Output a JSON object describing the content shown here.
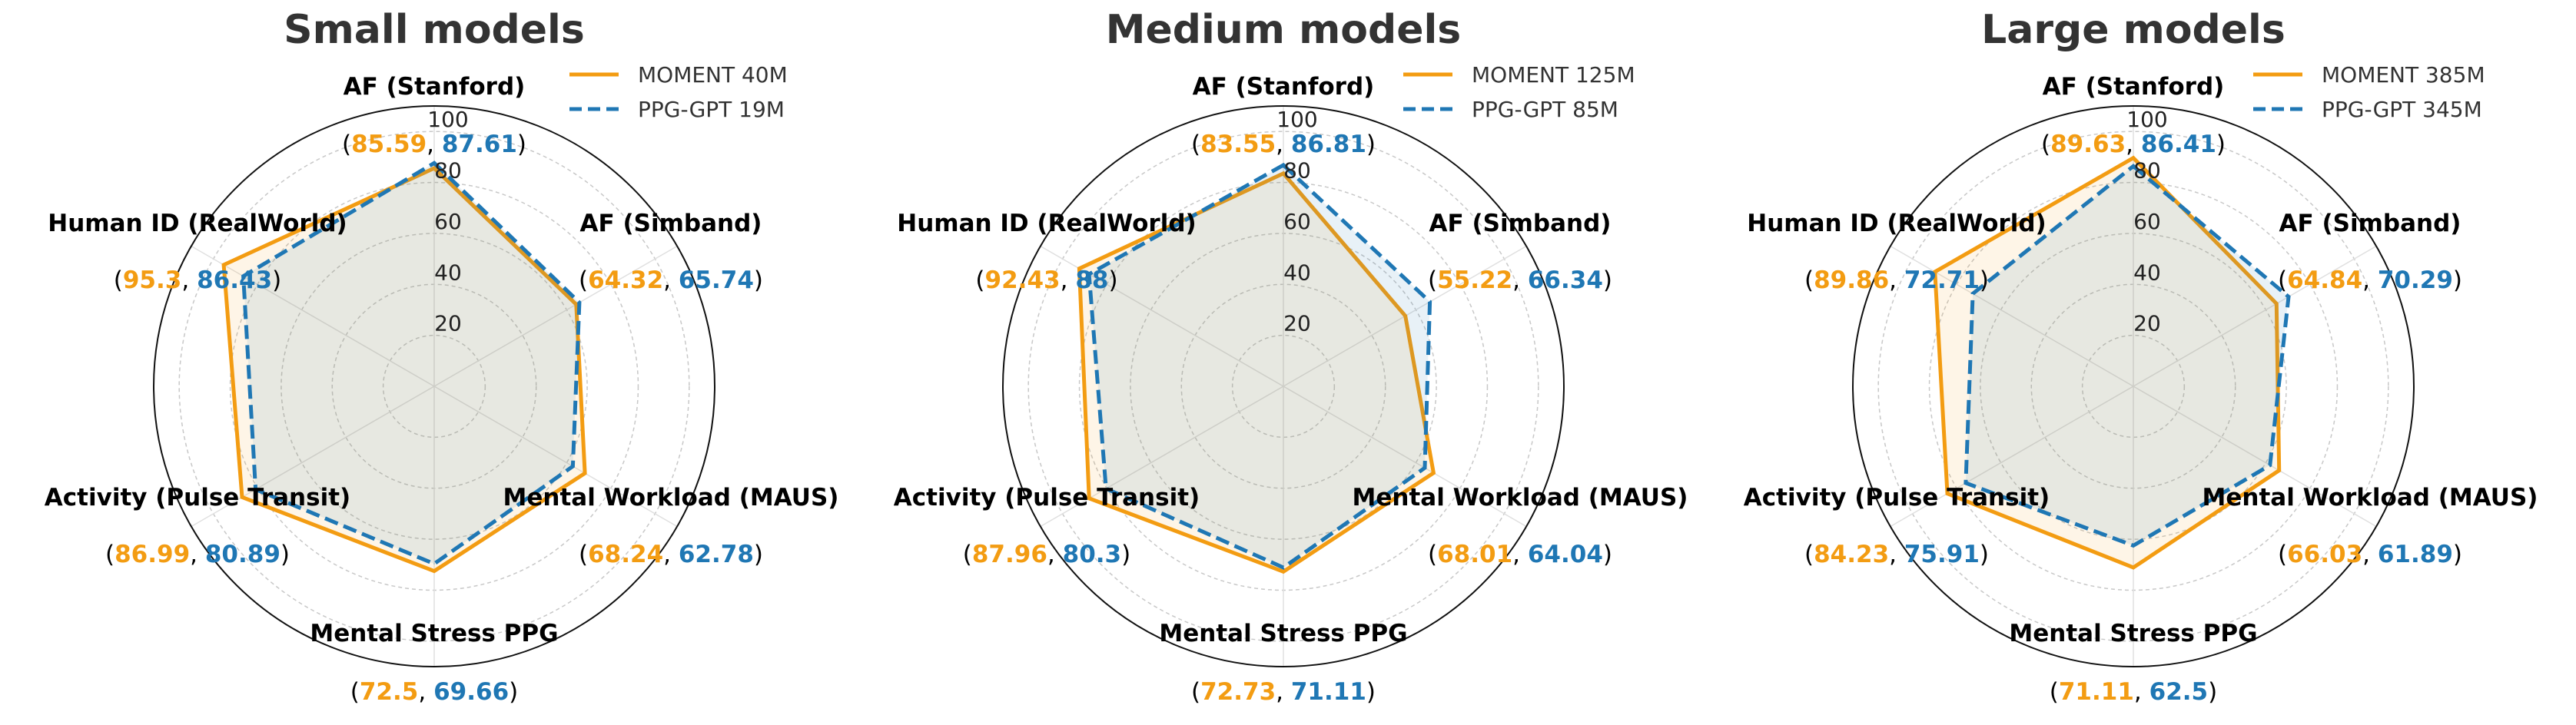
{
  "colors": {
    "moment": "#f39c12",
    "ppg_gpt": "#1f77b4"
  },
  "chart_data": [
    {
      "type": "radar",
      "title": "Small models",
      "axes": [
        "AF (Stanford)",
        "AF (Simband)",
        "Mental Workload (MAUS)",
        "Mental Stress PPG",
        "Activity (Pulse Transit)",
        "Human ID (RealWorld)"
      ],
      "rlim": [
        0,
        110
      ],
      "rticks": [
        "20",
        "40",
        "60",
        "80",
        "100"
      ],
      "legend_position": "top-right",
      "series": [
        {
          "name": "MOMENT 40M",
          "values": [
            85.59,
            64.32,
            68.24,
            72.5,
            86.99,
            95.3
          ],
          "color": "#f39c12",
          "style": "solid"
        },
        {
          "name": "PPG-GPT 19M",
          "values": [
            87.61,
            65.74,
            62.78,
            69.66,
            80.89,
            86.43
          ],
          "color": "#1f77b4",
          "style": "dashed"
        }
      ]
    },
    {
      "type": "radar",
      "title": "Medium models",
      "axes": [
        "AF (Stanford)",
        "AF (Simband)",
        "Mental Workload (MAUS)",
        "Mental Stress PPG",
        "Activity (Pulse Transit)",
        "Human ID (RealWorld)"
      ],
      "rlim": [
        0,
        110
      ],
      "rticks": [
        "20",
        "40",
        "60",
        "80",
        "100"
      ],
      "legend_position": "top-right",
      "series": [
        {
          "name": "MOMENT 125M",
          "values": [
            83.55,
            55.22,
            68.01,
            72.73,
            87.96,
            92.43
          ],
          "color": "#f39c12",
          "style": "solid"
        },
        {
          "name": "PPG-GPT 85M",
          "values": [
            86.81,
            66.34,
            64.04,
            71.11,
            80.3,
            88
          ],
          "color": "#1f77b4",
          "style": "dashed"
        }
      ]
    },
    {
      "type": "radar",
      "title": "Large models",
      "axes": [
        "AF (Stanford)",
        "AF (Simband)",
        "Mental Workload (MAUS)",
        "Mental Stress PPG",
        "Activity (Pulse Transit)",
        "Human ID (RealWorld)"
      ],
      "rlim": [
        0,
        110
      ],
      "rticks": [
        "20",
        "40",
        "60",
        "80",
        "100"
      ],
      "legend_position": "top-right",
      "series": [
        {
          "name": "MOMENT 385M",
          "values": [
            89.63,
            64.84,
            66.03,
            71.11,
            84.23,
            89.86
          ],
          "color": "#f39c12",
          "style": "solid"
        },
        {
          "name": "PPG-GPT 345M",
          "values": [
            86.41,
            70.29,
            61.89,
            62.5,
            75.91,
            72.71
          ],
          "color": "#1f77b4",
          "style": "dashed"
        }
      ]
    }
  ]
}
